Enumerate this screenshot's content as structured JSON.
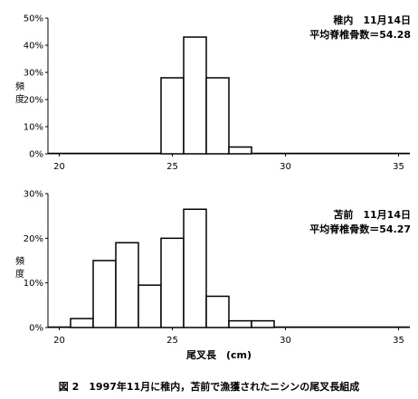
{
  "caption": "図 2　1997年11月に稚内，苫前で漁獲されたニシンの尾叉長組成",
  "chart_data": [
    {
      "type": "bar",
      "info_line1": "稚内　11月14日",
      "info_line2": "平均脊椎骨数＝54.28",
      "ylabel": "頻度",
      "xlabel": "",
      "yticks": [
        "0%",
        "10%",
        "20%",
        "30%",
        "40%",
        "50%"
      ],
      "ylim": [
        0,
        50
      ],
      "xticks": [
        "20",
        "25",
        "30",
        "35"
      ],
      "xlim": [
        19.5,
        35.5
      ],
      "x": [
        20,
        21,
        22,
        23,
        24,
        25,
        26,
        27,
        28,
        29,
        30,
        31,
        32,
        33,
        34,
        35
      ],
      "values": [
        0,
        0,
        0,
        0,
        0,
        28,
        43,
        28,
        2.5,
        0,
        0,
        0,
        0,
        0,
        0,
        0
      ]
    },
    {
      "type": "bar",
      "info_line1": "苫前　11月14日",
      "info_line2": "平均脊椎骨数＝54.27",
      "ylabel": "頻度",
      "xlabel": "尾叉長　(cm)",
      "yticks": [
        "0%",
        "10%",
        "20%",
        "30%"
      ],
      "ylim": [
        0,
        30
      ],
      "xticks": [
        "20",
        "25",
        "30",
        "35"
      ],
      "xlim": [
        19.5,
        35.5
      ],
      "x": [
        20,
        21,
        22,
        23,
        24,
        25,
        26,
        27,
        28,
        29,
        30,
        31,
        32,
        33,
        34,
        35
      ],
      "values": [
        0,
        2,
        15,
        19,
        9.5,
        20,
        26.5,
        7,
        1.5,
        1.5,
        0,
        0,
        0,
        0,
        0,
        0
      ]
    }
  ]
}
